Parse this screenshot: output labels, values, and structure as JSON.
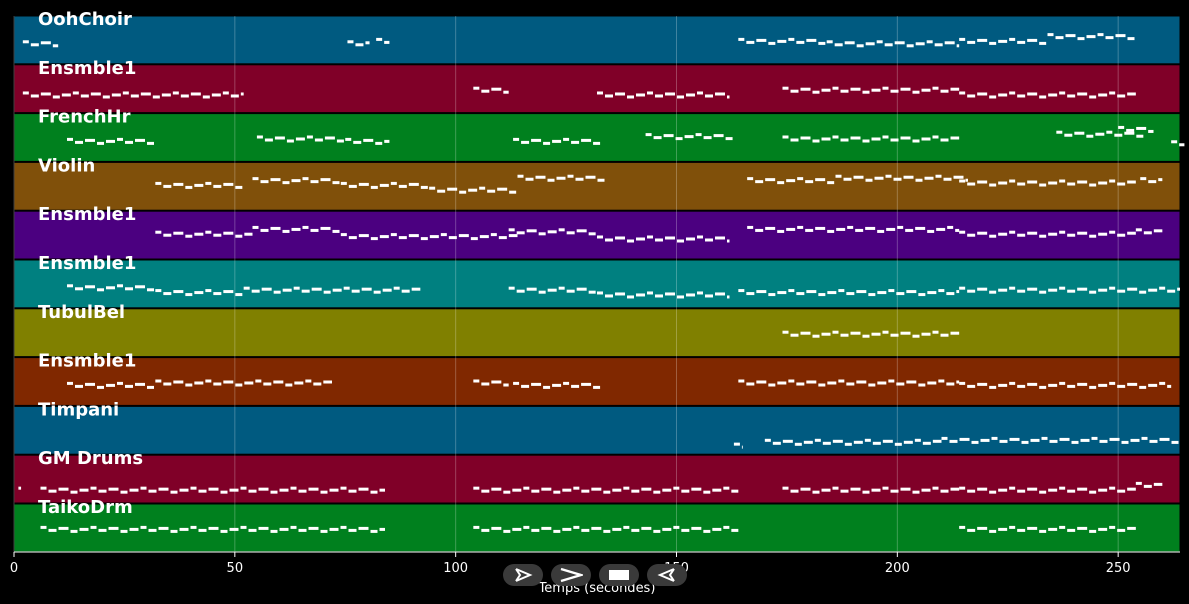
{
  "tracks": [
    {
      "name": "OohChoir",
      "color": "#005a80",
      "notes": [
        [
          2,
          0.55,
          8,
          0.8
        ],
        [
          75.5,
          0.55,
          5,
          0.6
        ],
        [
          82,
          0.5,
          3,
          0.6
        ],
        [
          164,
          0.5,
          20,
          0.6
        ],
        [
          184,
          0.55,
          30,
          0.6
        ],
        [
          214,
          0.5,
          20,
          0.6
        ],
        [
          234,
          0.4,
          20,
          0.6
        ]
      ]
    },
    {
      "name": "Ensmble1",
      "color": "#800028",
      "notes": [
        [
          2,
          0.6,
          50,
          0.8
        ],
        [
          104,
          0.5,
          8,
          0.7
        ],
        [
          132,
          0.6,
          30,
          0.7
        ],
        [
          174,
          0.5,
          40,
          0.7
        ],
        [
          214,
          0.6,
          40,
          0.7
        ]
      ]
    },
    {
      "name": "FrenchHr",
      "color": "#00801e",
      "notes": [
        [
          12,
          0.55,
          20,
          0.7
        ],
        [
          55,
          0.5,
          20,
          0.7
        ],
        [
          75,
          0.55,
          10,
          0.7
        ],
        [
          113,
          0.55,
          20,
          0.7
        ],
        [
          143,
          0.45,
          20,
          0.7
        ],
        [
          174,
          0.5,
          40,
          0.7
        ],
        [
          236,
          0.4,
          20,
          0.7
        ],
        [
          250,
          0.3,
          8,
          0.6
        ],
        [
          262,
          0.6,
          3,
          0.6
        ]
      ]
    },
    {
      "name": "Violin",
      "color": "#80500a",
      "notes": [
        [
          32,
          0.45,
          20,
          0.7
        ],
        [
          54,
          0.35,
          20,
          0.7
        ],
        [
          74,
          0.45,
          20,
          0.7
        ],
        [
          94,
          0.55,
          20,
          0.7
        ],
        [
          114,
          0.3,
          20,
          0.7
        ],
        [
          166,
          0.35,
          20,
          0.7
        ],
        [
          186,
          0.3,
          30,
          0.7
        ],
        [
          214,
          0.4,
          40,
          0.7
        ],
        [
          255,
          0.35,
          5,
          0.7
        ]
      ]
    },
    {
      "name": "Ensmble1",
      "color": "#4b0080",
      "notes": [
        [
          32,
          0.45,
          22,
          0.9
        ],
        [
          54,
          0.35,
          20,
          0.9
        ],
        [
          74,
          0.5,
          40,
          0.9
        ],
        [
          112,
          0.4,
          20,
          0.9
        ],
        [
          132,
          0.55,
          30,
          0.9
        ],
        [
          166,
          0.35,
          48,
          0.9
        ],
        [
          214,
          0.45,
          40,
          0.9
        ],
        [
          254,
          0.4,
          6,
          0.9
        ]
      ]
    },
    {
      "name": "Ensmble1",
      "color": "#008080",
      "notes": [
        [
          12,
          0.55,
          20,
          0.8
        ],
        [
          32,
          0.65,
          20,
          0.8
        ],
        [
          52,
          0.6,
          40,
          0.8
        ],
        [
          112,
          0.6,
          20,
          0.8
        ],
        [
          132,
          0.7,
          30,
          0.8
        ],
        [
          164,
          0.65,
          50,
          0.8
        ],
        [
          214,
          0.6,
          50,
          0.8
        ]
      ]
    },
    {
      "name": "TubulBel",
      "color": "#808000",
      "notes": [
        [
          174,
          0.5,
          40,
          0.7
        ]
      ]
    },
    {
      "name": "Ensmble1",
      "color": "#802800",
      "notes": [
        [
          12,
          0.55,
          20,
          0.9
        ],
        [
          32,
          0.5,
          40,
          0.9
        ],
        [
          104,
          0.5,
          8,
          0.9
        ],
        [
          113,
          0.55,
          20,
          0.9
        ],
        [
          164,
          0.5,
          50,
          0.9
        ],
        [
          214,
          0.55,
          48,
          0.9
        ]
      ]
    },
    {
      "name": "Timpani",
      "color": "#005a80",
      "notes": [
        [
          163,
          0.8,
          2,
          0.6
        ],
        [
          170,
          0.72,
          40,
          0.6
        ],
        [
          210,
          0.68,
          54,
          0.6
        ]
      ]
    },
    {
      "name": "GM Drums",
      "color": "#800028",
      "notes": [
        [
          1,
          0.7,
          0.6,
          0.5
        ],
        [
          6,
          0.7,
          78,
          0.5
        ],
        [
          104,
          0.7,
          60,
          0.5
        ],
        [
          174,
          0.7,
          40,
          0.5
        ],
        [
          214,
          0.7,
          40,
          0.5
        ],
        [
          254,
          0.6,
          6,
          0.5
        ]
      ]
    },
    {
      "name": "TaikoDrm",
      "color": "#00801e",
      "notes": [
        [
          6,
          0.5,
          78,
          0.5
        ],
        [
          104,
          0.5,
          60,
          0.5
        ],
        [
          214,
          0.5,
          40,
          0.5
        ]
      ]
    }
  ],
  "x_axis": {
    "ticks": [
      "0",
      "50",
      "100",
      "150",
      "200",
      "250"
    ],
    "tick_values": [
      0,
      50,
      100,
      150,
      200,
      250
    ],
    "min": 0,
    "max": 264,
    "title": "Temps (secondes)"
  },
  "controls": [
    {
      "name": "play-button",
      "icon": "play-icon"
    },
    {
      "name": "fast-forward-button",
      "icon": "chevron-right-icon"
    },
    {
      "name": "stop-button",
      "icon": "stop-icon"
    },
    {
      "name": "rewind-button",
      "icon": "rewind-icon"
    }
  ]
}
